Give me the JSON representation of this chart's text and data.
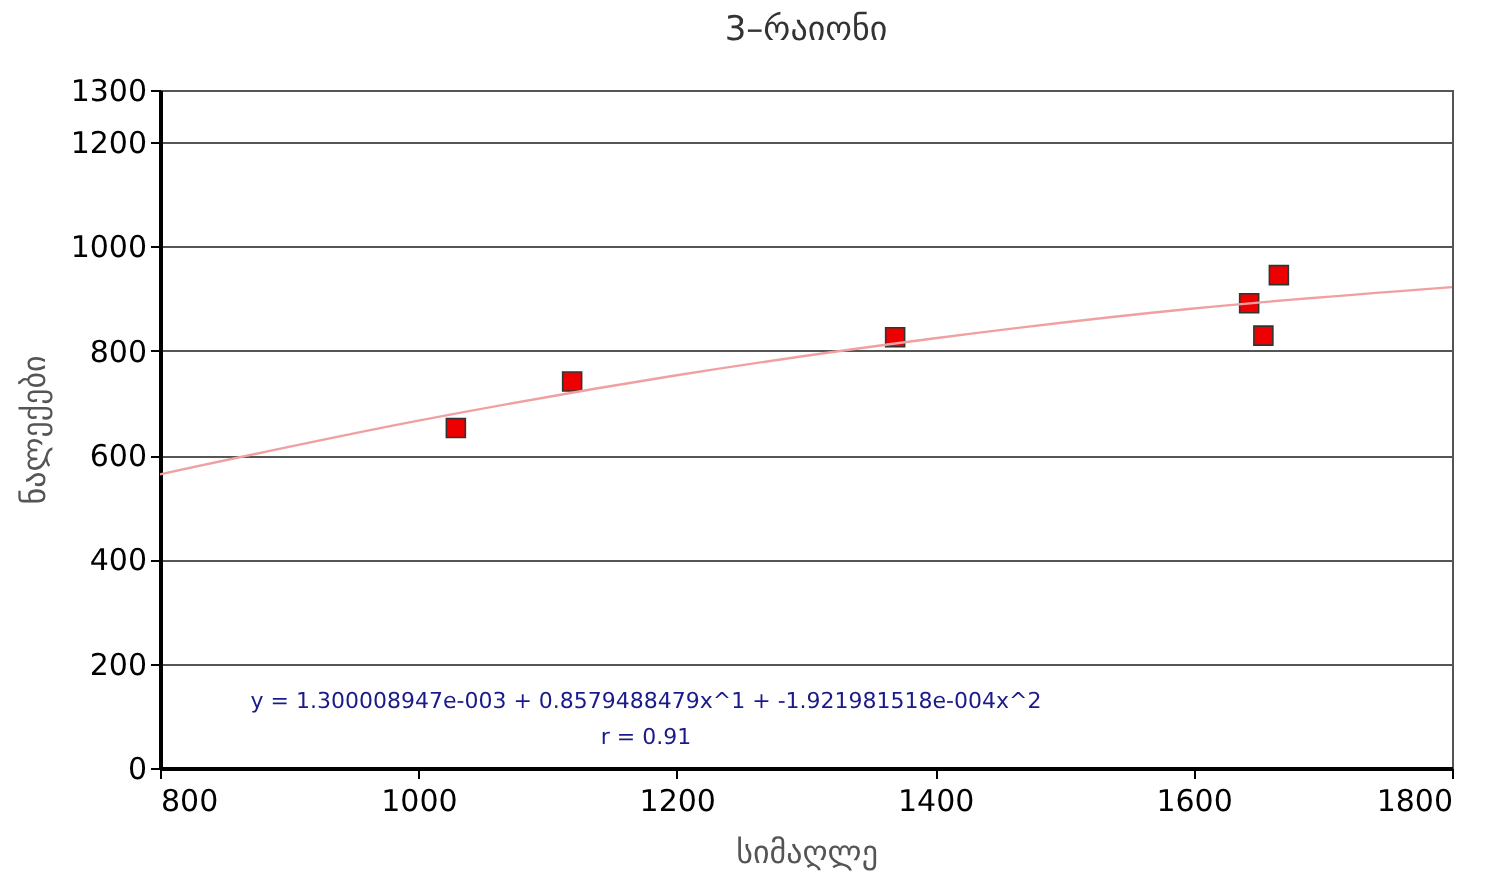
{
  "chart_data": {
    "type": "scatter",
    "title": "3–რაიონი",
    "xlabel": "სიმაღლე",
    "ylabel": "ნალექები",
    "x": [
      1029,
      1119,
      1369,
      1643,
      1654,
      1666
    ],
    "series": [
      {
        "type": "scatter",
        "color": "#ee0000",
        "values": [
          652,
          741,
          826,
          891,
          829,
          945
        ],
        "marker": "square"
      },
      {
        "type": "line",
        "color": "#f0a0a0",
        "x": [
          800,
          1000,
          1200,
          1400,
          1600,
          1800
        ],
        "values": [
          563,
          666,
          753,
          824,
          881,
          922
        ],
        "marker": "none"
      }
    ],
    "xlim": [
      800,
      1800
    ],
    "xticks": [
      800,
      1000,
      1200,
      1400,
      1600,
      1800
    ],
    "ylim": [
      0,
      1300
    ],
    "yticks": [
      0,
      200,
      400,
      600,
      800,
      1000,
      1200,
      1300
    ],
    "grid": "y",
    "annotations": [
      "y = 1.300008947e-003 + 0.8579488479x^1 + -1.921981518e-004x^2",
      "r = 0.91"
    ]
  }
}
